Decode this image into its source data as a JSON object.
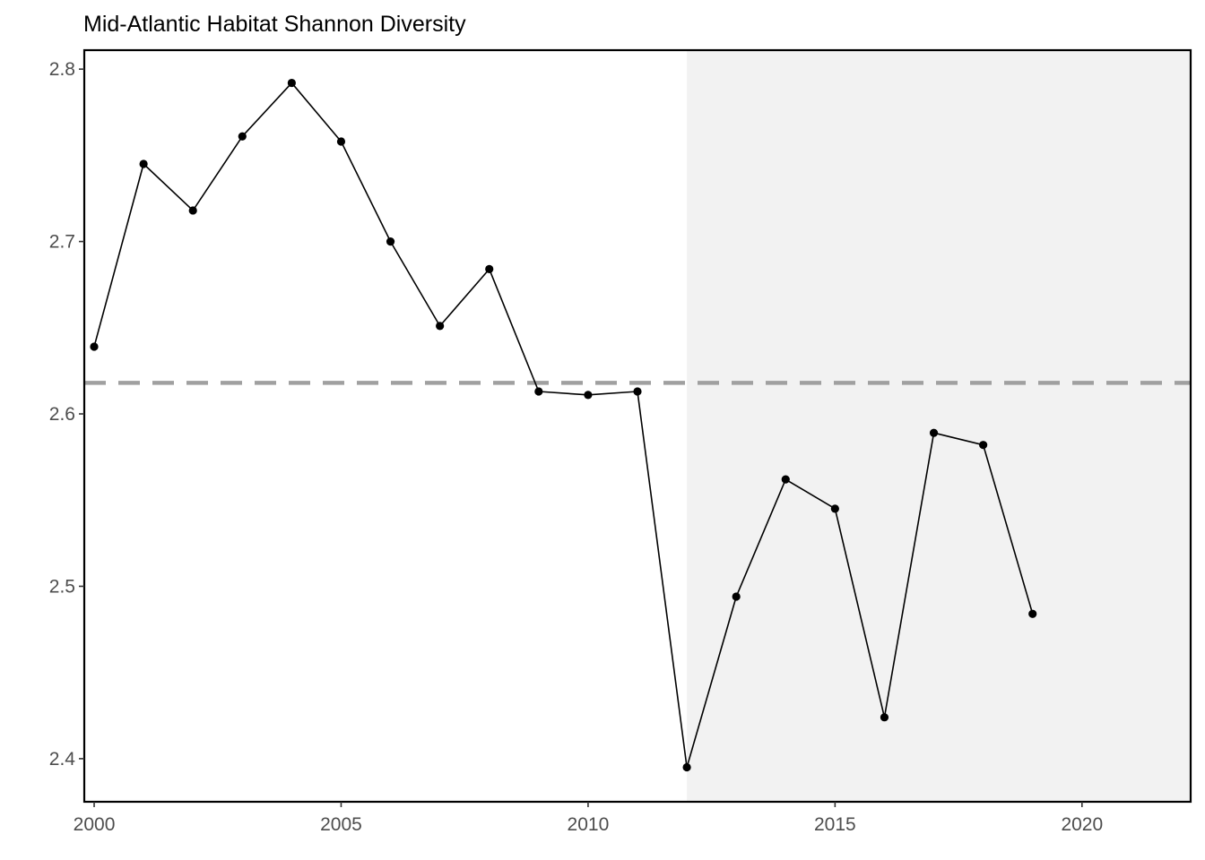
{
  "chart_data": {
    "type": "line",
    "title": "Mid-Atlantic Habitat Shannon Diversity",
    "xlabel": "",
    "ylabel": "",
    "x": [
      2000,
      2001,
      2002,
      2003,
      2004,
      2005,
      2006,
      2007,
      2008,
      2009,
      2010,
      2011,
      2012,
      2013,
      2014,
      2015,
      2016,
      2017,
      2018,
      2019
    ],
    "series": [
      {
        "values": [
          2.639,
          2.745,
          2.718,
          2.761,
          2.792,
          2.758,
          2.7,
          2.651,
          2.684,
          2.613,
          2.611,
          2.613,
          2.395,
          2.494,
          2.562,
          2.545,
          2.424,
          2.589,
          2.582,
          2.484
        ]
      }
    ],
    "reference_line": {
      "y": 2.618,
      "style": "dashed",
      "color": "#a0a0a0"
    },
    "shaded_region": {
      "x_start": 2012,
      "x_end": 2022.2,
      "color": "#f2f2f2"
    },
    "xlim": [
      1999.8,
      2022.2
    ],
    "ylim": [
      2.375,
      2.811
    ],
    "x_ticks": [
      2000,
      2005,
      2010,
      2015,
      2020
    ],
    "y_ticks": [
      "2.4",
      "2.5",
      "2.6",
      "2.7",
      "2.8"
    ],
    "grid": false,
    "colors": {
      "line": "#000000",
      "points": "#000000",
      "panel_border": "#000000"
    }
  }
}
